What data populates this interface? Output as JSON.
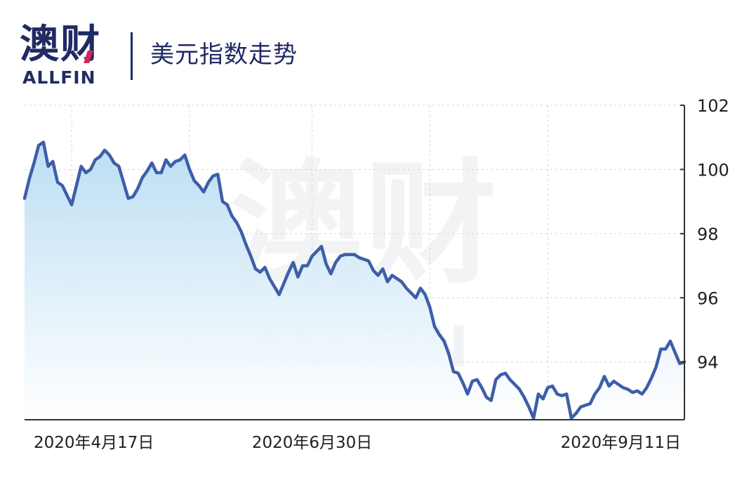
{
  "header": {
    "logo_cn": "澳财",
    "logo_en": "ALLFIN",
    "title": "美元指数走势"
  },
  "watermark": {
    "cn": "澳财",
    "en": "ALLFIN"
  },
  "colors": {
    "line": "#3e5ea8",
    "fill_top": "#b8dcf3",
    "fill_bottom": "#ffffff",
    "grid": "#cfd6e1",
    "axis": "#333333",
    "text": "#1f1f1f",
    "brand": "#202a63",
    "brand_accent": "#d2255c"
  },
  "chart_data": {
    "type": "area",
    "title": "美元指数走势",
    "xlabel": "",
    "ylabel": "",
    "ylim": [
      92.2,
      102
    ],
    "yticks": [
      94,
      96,
      98,
      100,
      102
    ],
    "x_tick_labels": [
      "2020年4月17日",
      "2020年6月30日",
      "2020年9月11日"
    ],
    "x_tick_positions": [
      10,
      61,
      111
    ],
    "grid": true,
    "legend": "none",
    "series": [
      {
        "values": [
          99.1,
          99.7,
          100.2,
          100.75,
          100.85,
          100.1,
          100.25,
          99.6,
          99.5,
          99.2,
          98.9,
          99.5,
          100.1,
          99.9,
          100.0,
          100.3,
          100.4,
          100.6,
          100.45,
          100.2,
          100.1,
          99.6,
          99.1,
          99.15,
          99.4,
          99.75,
          99.95,
          100.2,
          99.9,
          99.9,
          100.3,
          100.1,
          100.25,
          100.3,
          100.45,
          100.0,
          99.65,
          99.5,
          99.3,
          99.6,
          99.8,
          99.85,
          99.0,
          98.9,
          98.55,
          98.35,
          98.05,
          97.65,
          97.3,
          96.9,
          96.8,
          96.95,
          96.6,
          96.35,
          96.1,
          96.45,
          96.8,
          97.1,
          96.65,
          97.0,
          97.0,
          97.3,
          97.45,
          97.6,
          97.05,
          96.75,
          97.1,
          97.3,
          97.35,
          97.35,
          97.35,
          97.25,
          97.2,
          97.15,
          96.85,
          96.7,
          96.9,
          96.5,
          96.7,
          96.6,
          96.5,
          96.3,
          96.15,
          96.0,
          96.3,
          96.1,
          95.7,
          95.1,
          94.85,
          94.65,
          94.25,
          93.7,
          93.65,
          93.35,
          93.0,
          93.4,
          93.45,
          93.2,
          92.9,
          92.8,
          93.45,
          93.6,
          93.65,
          93.45,
          93.3,
          93.15,
          92.9,
          92.6,
          92.25,
          93.0,
          92.85,
          93.2,
          93.25,
          93.0,
          92.95,
          93.0,
          92.25,
          92.4,
          92.6,
          92.65,
          92.7,
          93.0,
          93.2,
          93.55,
          93.25,
          93.4,
          93.3,
          93.2,
          93.15,
          93.05,
          93.1,
          93.0,
          93.2,
          93.5,
          93.85,
          94.4,
          94.4,
          94.65,
          94.3,
          93.95,
          94.0
        ]
      }
    ]
  }
}
